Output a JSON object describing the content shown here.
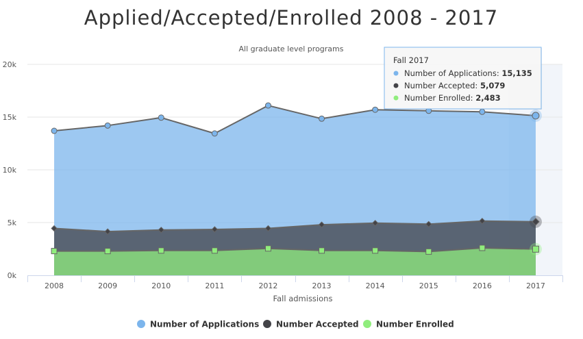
{
  "chart_data": {
    "type": "area",
    "title": "Applied/Accepted/Enrolled 2008 - 2017",
    "subtitle": "All graduate level programs",
    "xlabel": "Fall admissions",
    "ylabel": "",
    "categories": [
      "2008",
      "2009",
      "2010",
      "2011",
      "2012",
      "2013",
      "2014",
      "2015",
      "2016",
      "2017"
    ],
    "ylim": [
      0,
      20000
    ],
    "yticks": [
      0,
      5000,
      10000,
      15000,
      20000
    ],
    "ytick_labels": [
      "0k",
      "5k",
      "10k",
      "15k",
      "20k"
    ],
    "grid": true,
    "legend_position": "bottom",
    "series": [
      {
        "name": "Number of Applications",
        "color": "#7cb5ec",
        "marker": "circle",
        "values": [
          13700,
          14200,
          14950,
          13450,
          16100,
          14850,
          15700,
          15600,
          15500,
          15135
        ]
      },
      {
        "name": "Number Accepted",
        "color": "#434348",
        "marker": "diamond",
        "values": [
          4450,
          4150,
          4300,
          4350,
          4450,
          4800,
          4950,
          4850,
          5150,
          5079
        ]
      },
      {
        "name": "Number Enrolled",
        "color": "#90ed7d",
        "marker": "square",
        "values": [
          2300,
          2300,
          2350,
          2350,
          2550,
          2350,
          2350,
          2250,
          2600,
          2483
        ]
      }
    ],
    "tooltip": {
      "header": "Fall 2017",
      "rows": [
        {
          "label": "Number of Applications",
          "value": "15,135",
          "color": "#7cb5ec"
        },
        {
          "label": "Number Accepted",
          "value": "5,079",
          "color": "#434348"
        },
        {
          "label": "Number Enrolled",
          "value": "2,483",
          "color": "#90ed7d"
        }
      ]
    }
  }
}
